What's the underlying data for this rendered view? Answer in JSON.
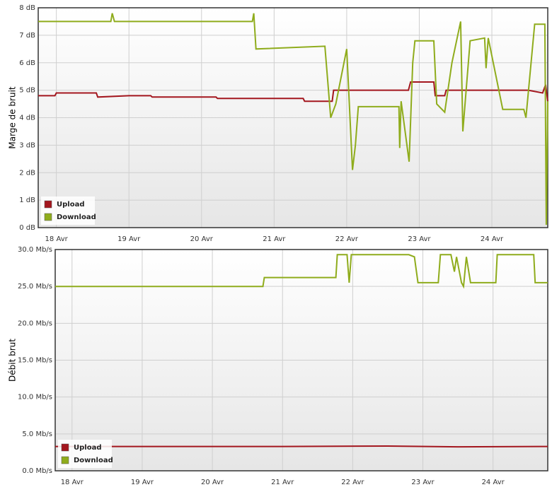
{
  "chart_data": [
    {
      "type": "line",
      "y_label": "Marge de bruit",
      "xlim": [
        17.75,
        24.77
      ],
      "ylim": [
        0,
        8
      ],
      "xticks": [
        {
          "value": 18,
          "label": "18 Avr"
        },
        {
          "value": 19,
          "label": "19 Avr"
        },
        {
          "value": 20,
          "label": "20 Avr"
        },
        {
          "value": 21,
          "label": "21 Avr"
        },
        {
          "value": 22,
          "label": "22 Avr"
        },
        {
          "value": 23,
          "label": "23 Avr"
        },
        {
          "value": 24,
          "label": "24 Avr"
        }
      ],
      "yticks": [
        {
          "value": 0,
          "label": "0 dB"
        },
        {
          "value": 1,
          "label": "1 dB"
        },
        {
          "value": 2,
          "label": "2 dB"
        },
        {
          "value": 3,
          "label": "3 dB"
        },
        {
          "value": 4,
          "label": "4 dB"
        },
        {
          "value": 5,
          "label": "5 dB"
        },
        {
          "value": 6,
          "label": "6 dB"
        },
        {
          "value": 7,
          "label": "7 dB"
        },
        {
          "value": 8,
          "label": "8 dB"
        }
      ],
      "grid": true,
      "legend": "lower left",
      "series": [
        {
          "name": "Upload",
          "color": "#a3161e",
          "x": [
            17.75,
            17.98,
            18.0,
            18.55,
            18.57,
            19.0,
            19.3,
            19.32,
            20.2,
            20.22,
            21.4,
            21.42,
            21.8,
            21.82,
            22.85,
            22.88,
            23.2,
            23.22,
            23.35,
            23.37,
            24.5,
            24.7,
            24.74,
            24.77
          ],
          "values": [
            4.8,
            4.8,
            4.9,
            4.9,
            4.75,
            4.8,
            4.8,
            4.75,
            4.75,
            4.7,
            4.7,
            4.6,
            4.6,
            5.0,
            5.0,
            5.3,
            5.3,
            4.8,
            4.8,
            5.0,
            5.0,
            4.9,
            5.2,
            4.6
          ]
        },
        {
          "name": "Download",
          "color": "#8fac1c",
          "x": [
            17.75,
            18.75,
            18.77,
            18.8,
            20.7,
            20.72,
            20.75,
            21.7,
            21.78,
            21.85,
            22.0,
            22.08,
            22.12,
            22.16,
            22.72,
            22.73,
            22.75,
            22.86,
            22.91,
            22.94,
            23.2,
            23.24,
            23.35,
            23.45,
            23.57,
            23.6,
            23.7,
            23.9,
            23.92,
            23.95,
            24.15,
            24.44,
            24.47,
            24.59,
            24.73,
            24.75,
            24.77
          ],
          "values": [
            7.5,
            7.5,
            7.8,
            7.5,
            7.5,
            7.8,
            6.5,
            6.6,
            4.0,
            4.5,
            6.5,
            2.1,
            3.0,
            4.4,
            4.4,
            2.9,
            4.6,
            2.4,
            6.0,
            6.8,
            6.8,
            4.5,
            4.2,
            6.0,
            7.5,
            3.5,
            6.8,
            6.9,
            5.8,
            6.9,
            4.3,
            4.3,
            4.0,
            7.4,
            7.4,
            0.1,
            4.6
          ]
        }
      ]
    },
    {
      "type": "line",
      "y_label": "Débit brut",
      "xlim": [
        17.76,
        24.78
      ],
      "ylim": [
        0,
        30
      ],
      "xticks": [
        {
          "value": 18,
          "label": "18 Avr"
        },
        {
          "value": 19,
          "label": "19 Avr"
        },
        {
          "value": 20,
          "label": "20 Avr"
        },
        {
          "value": 21,
          "label": "21 Avr"
        },
        {
          "value": 22,
          "label": "22 Avr"
        },
        {
          "value": 23,
          "label": "23 Avr"
        },
        {
          "value": 24,
          "label": "24 Avr"
        }
      ],
      "yticks": [
        {
          "value": 0,
          "label": "0.0 Mb/s"
        },
        {
          "value": 5,
          "label": "5.0 Mb/s"
        },
        {
          "value": 10,
          "label": "10.0 Mb/s"
        },
        {
          "value": 15,
          "label": "15.0 Mb/s"
        },
        {
          "value": 20,
          "label": "20.0 Mb/s"
        },
        {
          "value": 25,
          "label": "25.0 Mb/s"
        },
        {
          "value": 30,
          "label": "30.0 Mb/s"
        }
      ],
      "grid": true,
      "legend": "lower left",
      "series": [
        {
          "name": "Upload",
          "color": "#a3161e",
          "x": [
            17.76,
            21.0,
            22.5,
            23.5,
            24.78
          ],
          "values": [
            3.3,
            3.3,
            3.35,
            3.25,
            3.3
          ]
        },
        {
          "name": "Download",
          "color": "#8fac1c",
          "x": [
            17.76,
            20.72,
            20.74,
            21.76,
            21.78,
            21.92,
            21.95,
            21.98,
            22.8,
            22.88,
            22.93,
            23.22,
            23.25,
            23.4,
            23.45,
            23.48,
            23.55,
            23.58,
            23.62,
            23.68,
            24.04,
            24.06,
            24.58,
            24.6,
            24.78
          ],
          "values": [
            25.0,
            25.0,
            26.2,
            26.2,
            29.3,
            29.3,
            25.5,
            29.3,
            29.3,
            29.0,
            25.5,
            25.5,
            29.3,
            29.3,
            27.0,
            29.0,
            25.5,
            25.0,
            29.0,
            25.5,
            25.5,
            29.3,
            29.3,
            25.5,
            25.5
          ]
        }
      ]
    }
  ]
}
